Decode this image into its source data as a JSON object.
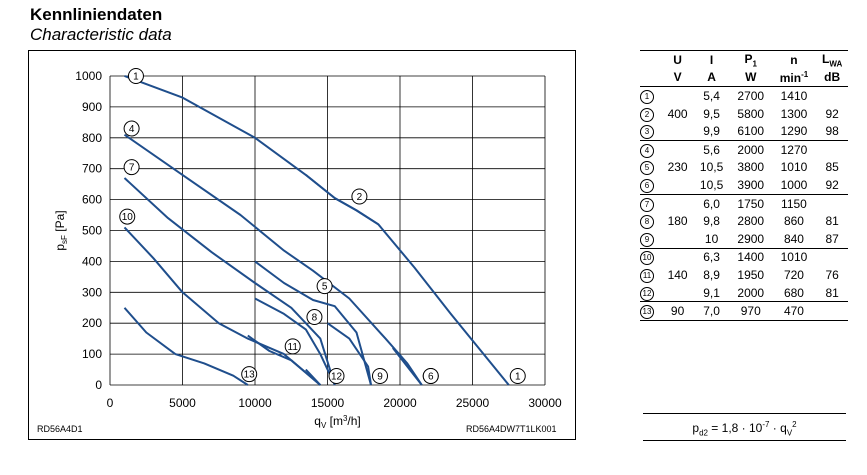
{
  "header": {
    "title": "Kennliniendaten",
    "subtitle": "Characteristic data"
  },
  "model_left": "RD56A4D1",
  "model_right": "RD56A4DW7T1LK001",
  "chart_data": {
    "type": "line",
    "xlabel_main": "q",
    "xlabel_sub": "V",
    "xlabel_unit": "[m",
    "xlabel_exp": "3",
    "xlabel_end": "/h]",
    "ylabel_main": "p",
    "ylabel_sub": "sF",
    "ylabel_unit": "[Pa]",
    "xlim": [
      0,
      30000
    ],
    "ylim": [
      0,
      1000
    ],
    "xticks": [
      0,
      5000,
      10000,
      15000,
      20000,
      25000,
      30000
    ],
    "yticks": [
      0,
      100,
      200,
      300,
      400,
      500,
      600,
      700,
      800,
      900,
      1000
    ],
    "grid": true,
    "series": [
      {
        "name": "1",
        "points": [
          [
            1000,
            1000
          ],
          [
            5000,
            930
          ],
          [
            10000,
            800
          ],
          [
            13500,
            680
          ],
          [
            15500,
            605
          ],
          [
            17000,
            565
          ],
          [
            18500,
            520
          ],
          [
            21000,
            380
          ],
          [
            23500,
            230
          ],
          [
            27500,
            0
          ]
        ],
        "top": [
          1100,
          1000
        ],
        "bottom": [
          27500,
          0
        ]
      },
      {
        "name": "2",
        "points": [
          [
            13500,
            680
          ],
          [
            15500,
            605
          ],
          [
            17000,
            565
          ],
          [
            18500,
            520
          ]
        ],
        "mid": [
          17200,
          610
        ]
      },
      {
        "name": "4",
        "points": [
          [
            1000,
            810
          ],
          [
            5000,
            680
          ],
          [
            9000,
            550
          ],
          [
            12000,
            435
          ],
          [
            14000,
            370
          ],
          [
            16500,
            280
          ],
          [
            19000,
            150
          ],
          [
            20500,
            70
          ],
          [
            21500,
            0
          ]
        ],
        "top": [
          800,
          830
        ],
        "bottom": [
          21500,
          0
        ]
      },
      {
        "name": "5",
        "points": [
          [
            10000,
            400
          ],
          [
            12000,
            330
          ],
          [
            14000,
            275
          ],
          [
            15500,
            255
          ],
          [
            17000,
            170
          ],
          [
            18000,
            0
          ]
        ],
        "mid": [
          14800,
          320
        ]
      },
      {
        "name": "6",
        "points": [
          [
            19500,
            120
          ],
          [
            20500,
            60
          ],
          [
            21500,
            0
          ]
        ],
        "bottom": [
          21500,
          0
        ]
      },
      {
        "name": "7",
        "points": [
          [
            1000,
            670
          ],
          [
            4000,
            540
          ],
          [
            7000,
            430
          ],
          [
            10000,
            330
          ],
          [
            12500,
            250
          ],
          [
            14500,
            150
          ],
          [
            15500,
            0
          ]
        ],
        "top": [
          800,
          705
        ]
      },
      {
        "name": "8",
        "points": [
          [
            10000,
            280
          ],
          [
            12000,
            230
          ],
          [
            13500,
            180
          ],
          [
            14500,
            100
          ],
          [
            15500,
            0
          ]
        ],
        "mid": [
          14100,
          220
        ]
      },
      {
        "name": "9",
        "points": [
          [
            15000,
            200
          ],
          [
            16500,
            150
          ],
          [
            17800,
            60
          ],
          [
            18000,
            0
          ]
        ],
        "bottom": [
          18000,
          0
        ]
      },
      {
        "name": "10",
        "points": [
          [
            1000,
            510
          ],
          [
            3000,
            410
          ],
          [
            5000,
            300
          ],
          [
            7500,
            200
          ],
          [
            9500,
            150
          ],
          [
            12000,
            100
          ],
          [
            14500,
            0
          ]
        ],
        "top": [
          500,
          545
        ]
      },
      {
        "name": "11",
        "points": [
          [
            9500,
            160
          ],
          [
            11000,
            110
          ],
          [
            12500,
            80
          ],
          [
            13500,
            40
          ],
          [
            14500,
            0
          ]
        ],
        "mid": [
          12600,
          125
        ]
      },
      {
        "name": "12",
        "points": [
          [
            13500,
            50
          ],
          [
            14500,
            0
          ]
        ],
        "bottom": [
          15000,
          0
        ]
      },
      {
        "name": "13",
        "points": [
          [
            1000,
            250
          ],
          [
            2500,
            170
          ],
          [
            4500,
            100
          ],
          [
            6500,
            70
          ],
          [
            8500,
            30
          ],
          [
            9500,
            0
          ]
        ],
        "mid": [
          9600,
          35
        ]
      }
    ]
  },
  "table": {
    "head": [
      "U",
      "I",
      "P",
      "n",
      "L"
    ],
    "head_sub": [
      "",
      "",
      "1",
      "",
      "WA"
    ],
    "units": [
      "V",
      "A",
      "W",
      "min",
      "dB"
    ],
    "unit_exp": [
      "",
      "",
      "",
      "-1",
      ""
    ],
    "groups": [
      {
        "voltage": "400",
        "rows": [
          {
            "id": "1",
            "I": "5,4",
            "P": "2700",
            "n": "1410",
            "L": ""
          },
          {
            "id": "2",
            "I": "9,5",
            "P": "5800",
            "n": "1300",
            "L": "92"
          },
          {
            "id": "3",
            "I": "9,9",
            "P": "6100",
            "n": "1290",
            "L": "98"
          }
        ]
      },
      {
        "voltage": "230",
        "rows": [
          {
            "id": "4",
            "I": "5,6",
            "P": "2000",
            "n": "1270",
            "L": ""
          },
          {
            "id": "5",
            "I": "10,5",
            "P": "3800",
            "n": "1010",
            "L": "85"
          },
          {
            "id": "6",
            "I": "10,5",
            "P": "3900",
            "n": "1000",
            "L": "92"
          }
        ]
      },
      {
        "voltage": "180",
        "rows": [
          {
            "id": "7",
            "I": "6,0",
            "P": "1750",
            "n": "1150",
            "L": ""
          },
          {
            "id": "8",
            "I": "9,8",
            "P": "2800",
            "n": "860",
            "L": "81"
          },
          {
            "id": "9",
            "I": "10",
            "P": "2900",
            "n": "840",
            "L": "87"
          }
        ]
      },
      {
        "voltage": "140",
        "rows": [
          {
            "id": "10",
            "I": "6,3",
            "P": "1400",
            "n": "1010",
            "L": ""
          },
          {
            "id": "11",
            "I": "8,9",
            "P": "1950",
            "n": "720",
            "L": "76"
          },
          {
            "id": "12",
            "I": "9,1",
            "P": "2000",
            "n": "680",
            "L": "81"
          }
        ]
      },
      {
        "voltage": "90",
        "rows": [
          {
            "id": "13",
            "I": "7,0",
            "P": "970",
            "n": "470",
            "L": ""
          }
        ]
      }
    ]
  },
  "formula": {
    "text": "p",
    "sub": "d2",
    "rest": " = 1,8 · 10",
    "exp": "-7",
    "tail": " · q",
    "sub2": "V",
    "exp2": "2"
  }
}
